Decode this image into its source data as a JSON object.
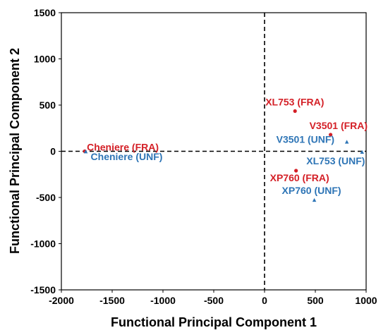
{
  "chart_data": {
    "type": "scatter",
    "xlabel": "Functional Principal Component 1",
    "ylabel": "Functional Principal Component 2",
    "xlim": [
      -2000,
      1000
    ],
    "ylim": [
      -1500,
      1500
    ],
    "x_ticks": [
      -2000,
      -1500,
      -1000,
      -500,
      0,
      500,
      1000
    ],
    "y_ticks": [
      -1500,
      -1000,
      -500,
      0,
      500,
      1000,
      1500
    ],
    "x_tick_labels": [
      "-2000",
      "-1500",
      "-1000",
      "-500",
      "0",
      "500",
      "1000"
    ],
    "y_tick_labels": [
      "-1500",
      "-1000",
      "-500",
      "0",
      "500",
      "1000",
      "1500"
    ],
    "grid": false,
    "reference_lines": [
      "x = 0 (dashed)",
      "y = 0 (dashed)"
    ],
    "series": [
      {
        "marker": "circle",
        "color": "#d42027",
        "points": [
          {
            "label": "Cheniere (FRA)",
            "x": -1770,
            "y": 0
          },
          {
            "label": "XL753 (FRA)",
            "x": 300,
            "y": 435
          },
          {
            "label": "V3501 (FRA)",
            "x": 650,
            "y": 180
          },
          {
            "label": "XP760 (FRA)",
            "x": 310,
            "y": -210
          }
        ]
      },
      {
        "marker": "triangle",
        "color": "#2e75b6",
        "points": [
          {
            "label": "Cheniere (UNF)",
            "x": -1760,
            "y": -5
          },
          {
            "label": "V3501 (UNF)",
            "x": 810,
            "y": 100
          },
          {
            "label": "XL753 (UNF)",
            "x": 960,
            "y": -10
          },
          {
            "label": "XP760 (UNF)",
            "x": 490,
            "y": -530
          }
        ]
      }
    ]
  }
}
